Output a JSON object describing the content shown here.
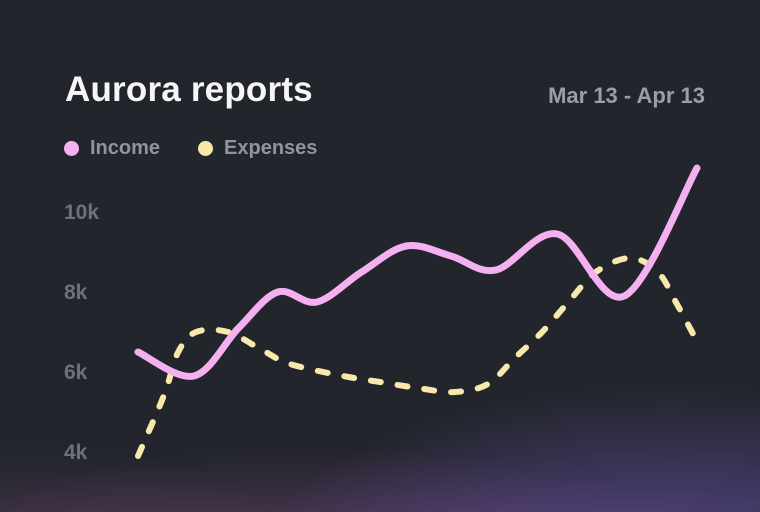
{
  "header": {
    "title": "Aurora reports",
    "date_range": "Mar 13 - Apr 13"
  },
  "legend": [
    {
      "label": "Income",
      "color": "#f5b0f2"
    },
    {
      "label": "Expenses",
      "color": "#f8e8ab"
    }
  ],
  "chart_data": {
    "type": "line",
    "title": "Aurora reports",
    "x_range_label": "Mar 13 - Apr 13",
    "x_start": "Mar 13",
    "x_end": "Apr 13",
    "y_ticks": [
      "10k",
      "8k",
      "6k",
      "4k"
    ],
    "y_tick_values": [
      10000,
      8000,
      6000,
      4000
    ],
    "ylim": [
      3500,
      11500
    ],
    "grid": false,
    "legend_position": "top-left",
    "background_accent_colors": [
      "#6a52aa",
      "#8e4c88",
      "#583d5c",
      "#22252c"
    ],
    "series": [
      {
        "name": "Income",
        "color": "#f5b0f2",
        "style": "solid",
        "points": [
          {
            "x": 0.0,
            "y": 6500
          },
          {
            "x": 0.1,
            "y": 5900
          },
          {
            "x": 0.18,
            "y": 7100
          },
          {
            "x": 0.25,
            "y": 8000
          },
          {
            "x": 0.32,
            "y": 7750
          },
          {
            "x": 0.4,
            "y": 8500
          },
          {
            "x": 0.48,
            "y": 9150
          },
          {
            "x": 0.56,
            "y": 8900
          },
          {
            "x": 0.64,
            "y": 8550
          },
          {
            "x": 0.75,
            "y": 9450
          },
          {
            "x": 0.87,
            "y": 7900
          },
          {
            "x": 1.0,
            "y": 11100
          }
        ]
      },
      {
        "name": "Expenses",
        "color": "#f8e8ab",
        "style": "dashed",
        "points": [
          {
            "x": 0.0,
            "y": 3900
          },
          {
            "x": 0.025,
            "y": 4700
          },
          {
            "x": 0.05,
            "y": 5550
          },
          {
            "x": 0.072,
            "y": 6500
          },
          {
            "x": 0.104,
            "y": 7000
          },
          {
            "x": 0.161,
            "y": 7000
          },
          {
            "x": 0.222,
            "y": 6550
          },
          {
            "x": 0.272,
            "y": 6200
          },
          {
            "x": 0.367,
            "y": 5900
          },
          {
            "x": 0.433,
            "y": 5750
          },
          {
            "x": 0.5,
            "y": 5600
          },
          {
            "x": 0.567,
            "y": 5500
          },
          {
            "x": 0.626,
            "y": 5700
          },
          {
            "x": 0.674,
            "y": 6350
          },
          {
            "x": 0.723,
            "y": 7000
          },
          {
            "x": 0.773,
            "y": 7800
          },
          {
            "x": 0.819,
            "y": 8500
          },
          {
            "x": 0.88,
            "y": 8850
          },
          {
            "x": 0.93,
            "y": 8500
          },
          {
            "x": 0.964,
            "y": 7700
          },
          {
            "x": 0.995,
            "y": 6900
          }
        ]
      }
    ]
  }
}
